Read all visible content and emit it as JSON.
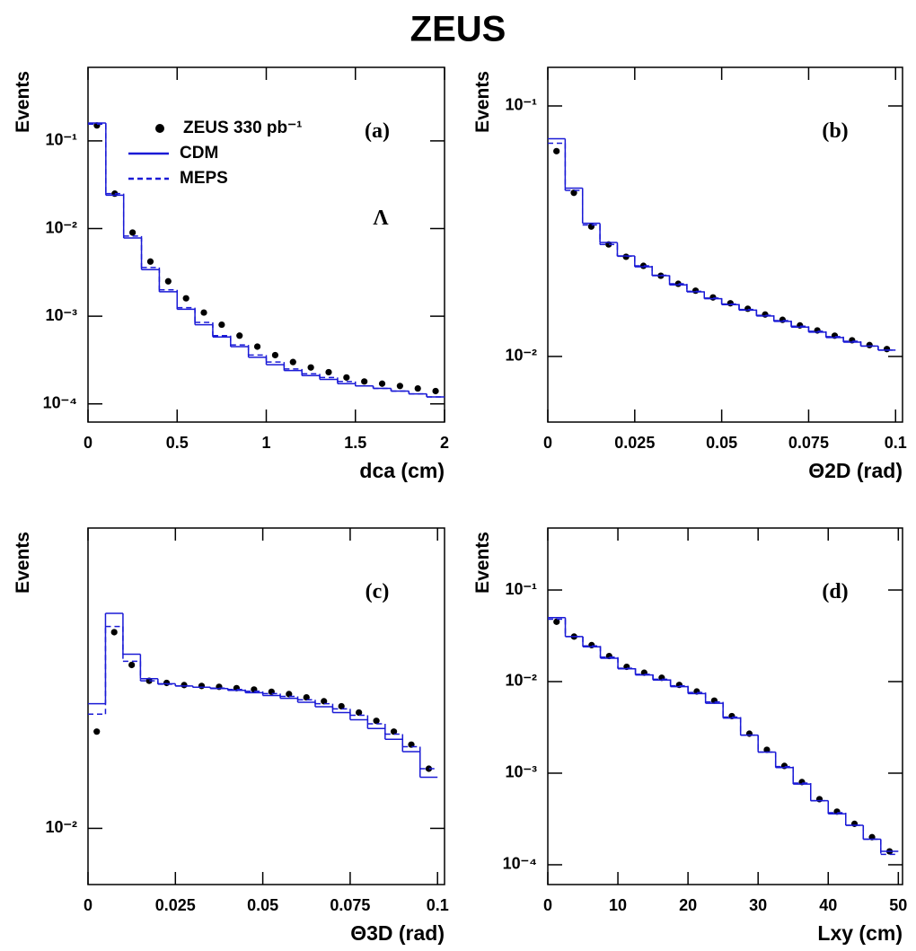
{
  "title": "ZEUS",
  "chart_data": [
    {
      "type": "histogram",
      "panel_label": "(a)",
      "annotation": "Λ",
      "xlabel": "dca (cm)",
      "ylabel": "Events",
      "log_y": true,
      "legend": true,
      "xlim": [
        0,
        2
      ],
      "xticks": [
        0,
        0.5,
        1,
        1.5,
        2
      ],
      "ylim": [
        6.2e-05,
        0.69
      ],
      "yticks": [
        {
          "value": 0.1,
          "label": "10⁻¹"
        },
        {
          "value": 0.01,
          "label": "10⁻²"
        },
        {
          "value": 0.001,
          "label": "10⁻³"
        },
        {
          "value": 0.0001,
          "label": "10⁻⁴"
        }
      ],
      "bins": [
        0,
        0.1,
        0.2,
        0.3,
        0.4,
        0.5,
        0.6,
        0.7,
        0.8,
        0.9,
        1,
        1.1,
        1.2,
        1.3,
        1.4,
        1.5,
        1.6,
        1.7,
        1.8,
        1.9,
        2
      ],
      "series": [
        {
          "name": "ZEUS 330 pb⁻¹",
          "style": "points",
          "color": "#000000",
          "values": [
            0.15,
            0.025,
            0.009,
            0.0042,
            0.0025,
            0.0016,
            0.0011,
            0.0008,
            0.0006,
            0.00045,
            0.00036,
            0.0003,
            0.00026,
            0.00023,
            0.0002,
            0.00018,
            0.00017,
            0.00016,
            0.00015,
            0.00014
          ]
        },
        {
          "name": "CDM",
          "style": "solid",
          "color": "#1a1ad6",
          "values": [
            0.16,
            0.024,
            0.0078,
            0.0034,
            0.0019,
            0.0012,
            0.0008,
            0.00058,
            0.00045,
            0.00034,
            0.00028,
            0.00024,
            0.00021,
            0.00019,
            0.00017,
            0.00016,
            0.00015,
            0.00014,
            0.00013,
            0.00012
          ]
        },
        {
          "name": "MEPS",
          "style": "dashed",
          "color": "#1a1ad6",
          "values": [
            0.155,
            0.025,
            0.0082,
            0.0036,
            0.002,
            0.00125,
            0.00085,
            0.0006,
            0.00047,
            0.00036,
            0.0003,
            0.00025,
            0.00022,
            0.0002,
            0.00018,
            0.00016,
            0.00015,
            0.00014,
            0.00013,
            0.00012
          ]
        }
      ]
    },
    {
      "type": "histogram",
      "panel_label": "(b)",
      "xlabel": "Θ2D (rad)",
      "ylabel": "Events",
      "log_y": true,
      "xlim": [
        0,
        0.102
      ],
      "xticks": [
        0,
        0.025,
        0.05,
        0.075,
        0.1
      ],
      "ylim": [
        0.00547,
        0.1426
      ],
      "yticks": [
        {
          "value": 0.1,
          "label": "10⁻¹"
        },
        {
          "value": 0.01,
          "label": "10⁻²"
        }
      ],
      "bins": [
        0,
        0.005,
        0.01,
        0.015,
        0.02,
        0.025,
        0.03,
        0.035,
        0.04,
        0.045,
        0.05,
        0.055,
        0.06,
        0.065,
        0.07,
        0.075,
        0.08,
        0.085,
        0.09,
        0.095,
        0.1
      ],
      "series": [
        {
          "style": "points",
          "color": "#000000",
          "values": [
            0.066,
            0.045,
            0.033,
            0.028,
            0.025,
            0.023,
            0.021,
            0.0195,
            0.0183,
            0.0172,
            0.0163,
            0.0155,
            0.0147,
            0.014,
            0.0133,
            0.0127,
            0.0121,
            0.0116,
            0.0111,
            0.0107
          ]
        },
        {
          "style": "solid",
          "color": "#1a1ad6",
          "values": [
            0.074,
            0.047,
            0.034,
            0.0285,
            0.0252,
            0.0228,
            0.021,
            0.0193,
            0.0181,
            0.017,
            0.0161,
            0.0153,
            0.0145,
            0.0138,
            0.0131,
            0.0125,
            0.0119,
            0.0114,
            0.011,
            0.0106
          ]
        },
        {
          "style": "dashed",
          "color": "#1a1ad6",
          "values": [
            0.071,
            0.046,
            0.0335,
            0.028,
            0.0251,
            0.023,
            0.0211,
            0.0195,
            0.0182,
            0.0171,
            0.0162,
            0.0154,
            0.0146,
            0.0139,
            0.0132,
            0.0126,
            0.012,
            0.0115,
            0.011,
            0.0106
          ]
        }
      ]
    },
    {
      "type": "histogram",
      "panel_label": "(c)",
      "xlabel": "Θ3D (rad)",
      "ylabel": "Events",
      "log_y": true,
      "xlim": [
        0,
        0.102
      ],
      "xticks": [
        0,
        0.025,
        0.05,
        0.075,
        0.1
      ],
      "ylim": [
        0.0065,
        0.1
      ],
      "yticks": [
        {
          "value": 0.01,
          "label": "10⁻²"
        }
      ],
      "bins": [
        0,
        0.005,
        0.01,
        0.015,
        0.02,
        0.025,
        0.03,
        0.035,
        0.04,
        0.045,
        0.05,
        0.055,
        0.06,
        0.065,
        0.07,
        0.075,
        0.08,
        0.085,
        0.09,
        0.095,
        0.1
      ],
      "series": [
        {
          "style": "points",
          "color": "#000000",
          "values": [
            0.021,
            0.045,
            0.035,
            0.031,
            0.0305,
            0.03,
            0.0298,
            0.0296,
            0.0293,
            0.029,
            0.0285,
            0.028,
            0.0273,
            0.0265,
            0.0255,
            0.0243,
            0.0228,
            0.021,
            0.019,
            0.0158
          ]
        },
        {
          "style": "solid",
          "color": "#1a1ad6",
          "values": [
            0.026,
            0.052,
            0.038,
            0.0315,
            0.0303,
            0.0298,
            0.0295,
            0.0292,
            0.0288,
            0.0283,
            0.0277,
            0.0271,
            0.0263,
            0.0254,
            0.0243,
            0.023,
            0.0215,
            0.0198,
            0.018,
            0.0148
          ]
        },
        {
          "style": "dashed",
          "color": "#1a1ad6",
          "values": [
            0.024,
            0.047,
            0.036,
            0.031,
            0.0302,
            0.0298,
            0.0295,
            0.0293,
            0.029,
            0.0286,
            0.0281,
            0.0275,
            0.0268,
            0.026,
            0.025,
            0.0238,
            0.0223,
            0.0206,
            0.0187,
            0.0158
          ]
        }
      ]
    },
    {
      "type": "histogram",
      "panel_label": "(d)",
      "xlabel": "Lxy (cm)",
      "ylabel": "Events",
      "log_y": true,
      "xlim": [
        0,
        50.6
      ],
      "xticks": [
        0,
        10,
        20,
        30,
        40,
        50
      ],
      "ylim": [
        6.08e-05,
        0.475
      ],
      "yticks": [
        {
          "value": 0.1,
          "label": "10⁻¹"
        },
        {
          "value": 0.01,
          "label": "10⁻²"
        },
        {
          "value": 0.001,
          "label": "10⁻³"
        },
        {
          "value": 0.0001,
          "label": "10⁻⁴"
        }
      ],
      "bins": [
        0,
        2.5,
        5,
        7.5,
        10,
        12.5,
        15,
        17.5,
        20,
        22.5,
        25,
        27.5,
        30,
        32.5,
        35,
        37.5,
        40,
        42.5,
        45,
        47.5,
        50
      ],
      "series": [
        {
          "style": "points",
          "color": "#000000",
          "values": [
            0.045,
            0.031,
            0.025,
            0.019,
            0.0145,
            0.0125,
            0.011,
            0.0092,
            0.0078,
            0.0062,
            0.0042,
            0.0027,
            0.0018,
            0.0012,
            0.0008,
            0.00052,
            0.00038,
            0.00028,
            0.0002,
            0.00014
          ]
        },
        {
          "style": "solid",
          "color": "#1a1ad6",
          "values": [
            0.05,
            0.031,
            0.024,
            0.018,
            0.0138,
            0.0118,
            0.0104,
            0.0088,
            0.0074,
            0.0058,
            0.004,
            0.0026,
            0.0017,
            0.00115,
            0.00076,
            0.0005,
            0.00036,
            0.00027,
            0.00019,
            0.00014
          ]
        },
        {
          "style": "dashed",
          "color": "#1a1ad6",
          "values": [
            0.048,
            0.031,
            0.0245,
            0.0185,
            0.014,
            0.012,
            0.0106,
            0.009,
            0.0076,
            0.006,
            0.0041,
            0.0026,
            0.0017,
            0.00118,
            0.00078,
            0.0005,
            0.00037,
            0.00027,
            0.00019,
            0.00013
          ]
        }
      ]
    }
  ]
}
